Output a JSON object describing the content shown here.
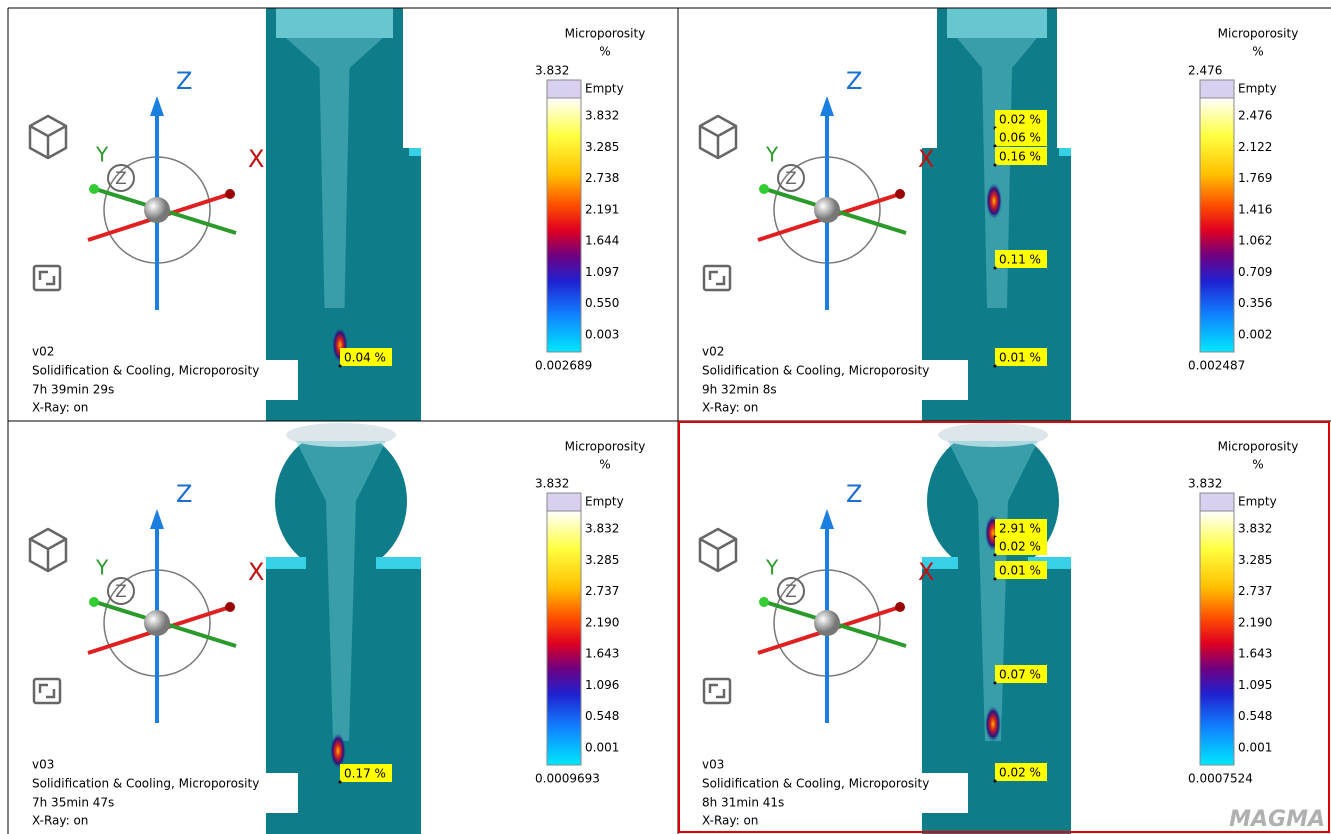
{
  "gizmo": {
    "z": "Z",
    "x": "X",
    "y": "Y",
    "view": "Z"
  },
  "logo": "MAGMA",
  "panels": [
    {
      "legend": {
        "title": "Microporosity",
        "unit": "%",
        "max": "3.832",
        "empty": "Empty",
        "ticks": [
          "3.832",
          "3.285",
          "2.738",
          "2.191",
          "1.644",
          "1.097",
          "0.550",
          "0.003"
        ],
        "min": "0.002689"
      },
      "info": [
        "v02",
        "Solidification & Cooling, Microporosity",
        "7h 39min 29s",
        "X-Ray: on"
      ],
      "annotations": [
        "0.04 %"
      ]
    },
    {
      "legend": {
        "title": "Microporosity",
        "unit": "%",
        "max": "2.476",
        "empty": "Empty",
        "ticks": [
          "2.476",
          "2.122",
          "1.769",
          "1.416",
          "1.062",
          "0.709",
          "0.356",
          "0.002"
        ],
        "min": "0.002487"
      },
      "info": [
        "v02",
        "Solidification & Cooling, Microporosity",
        "9h 32min 8s",
        "X-Ray: on"
      ],
      "annotations": [
        "0.02 %",
        "0.06 %",
        "0.16 %",
        "0.11 %",
        "0.01 %"
      ]
    },
    {
      "legend": {
        "title": "Microporosity",
        "unit": "%",
        "max": "3.832",
        "empty": "Empty",
        "ticks": [
          "3.832",
          "3.285",
          "2.737",
          "2.190",
          "1.643",
          "1.096",
          "0.548",
          "0.001"
        ],
        "min": "0.0009693"
      },
      "info": [
        "v03",
        "Solidification & Cooling, Microporosity",
        "7h 35min 47s",
        "X-Ray: on"
      ],
      "annotations": [
        "0.17 %"
      ]
    },
    {
      "legend": {
        "title": "Microporosity",
        "unit": "%",
        "max": "3.832",
        "empty": "Empty",
        "ticks": [
          "3.832",
          "3.285",
          "2.737",
          "2.190",
          "1.643",
          "1.095",
          "0.548",
          "0.001"
        ],
        "min": "0.0007524"
      },
      "info": [
        "v03",
        "Solidification & Cooling, Microporosity",
        "8h 31min 41s",
        "X-Ray: on"
      ],
      "annotations": [
        "2.91 %",
        "0.02 %",
        "0.01 %",
        "0.07 %",
        "0.02 %"
      ]
    }
  ]
}
